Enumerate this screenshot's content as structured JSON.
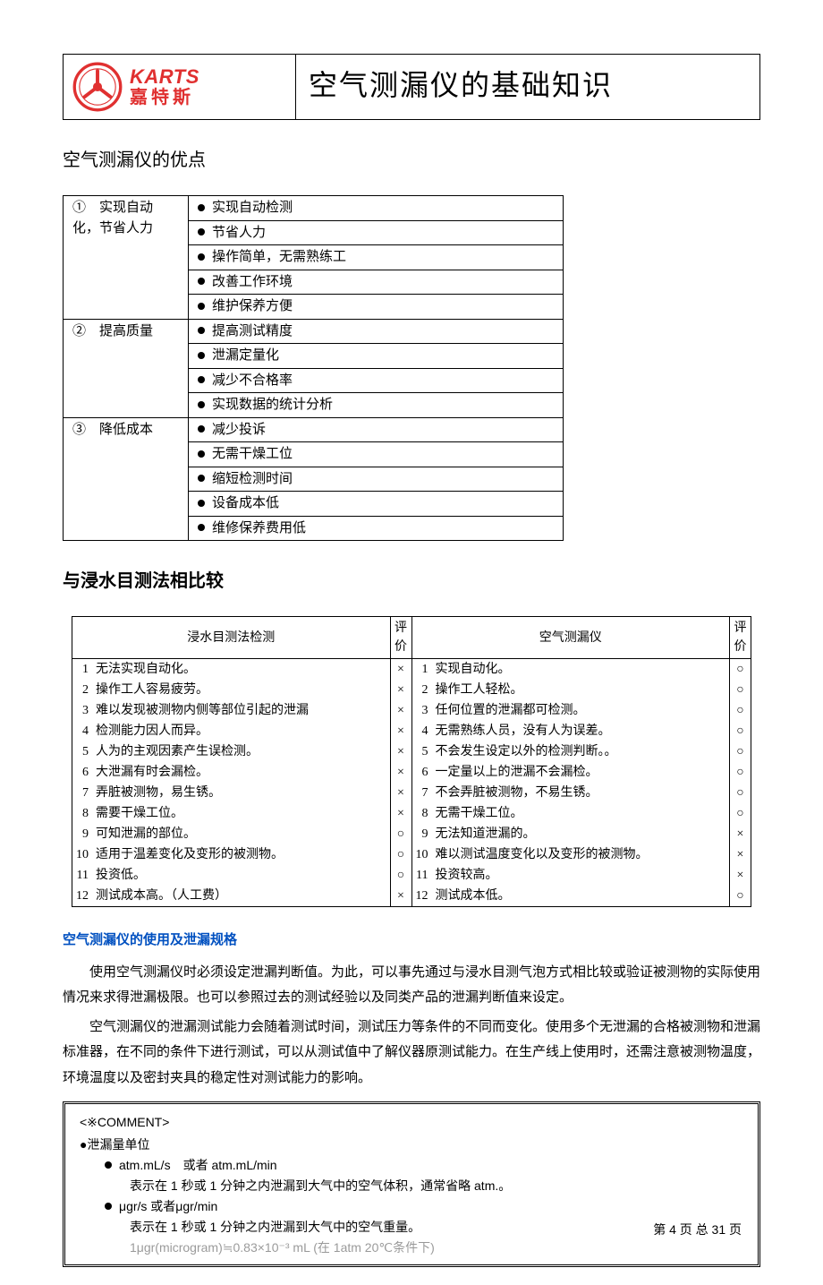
{
  "header": {
    "logo_en": "KARTS",
    "logo_cn": "嘉特斯",
    "doc_title": "空气测漏仪的基础知识"
  },
  "section1": {
    "title": "空气测漏仪的优点",
    "groups": [
      {
        "label": "①　实现自动化，节省人力",
        "items": [
          "实现自动检测",
          "节省人力",
          "操作简单，无需熟练工",
          "改善工作环境",
          "维护保养方便"
        ]
      },
      {
        "label": "②　提高质量",
        "items": [
          "提高测试精度",
          "泄漏定量化",
          "减少不合格率",
          "实现数据的统计分析"
        ]
      },
      {
        "label": "③　降低成本",
        "items": [
          "减少投诉",
          "无需干燥工位",
          "缩短检测时间",
          "设备成本低",
          "维修保养费用低"
        ]
      }
    ]
  },
  "section2": {
    "title": "与浸水目测法相比较",
    "head_left": "浸水目测法检测",
    "head_right": "空气测漏仪",
    "head_eval": "评价",
    "rows": [
      {
        "n": "1",
        "l": "无法实现自动化。",
        "le": "×",
        "r": "实现自动化。",
        "re": "○"
      },
      {
        "n": "2",
        "l": "操作工人容易疲劳。",
        "le": "×",
        "r": "操作工人轻松。",
        "re": "○"
      },
      {
        "n": "3",
        "l": "难以发现被测物内侧等部位引起的泄漏",
        "le": "×",
        "r": "任何位置的泄漏都可检测。",
        "re": "○"
      },
      {
        "n": "4",
        "l": "检测能力因人而异。",
        "le": "×",
        "r": "无需熟练人员，没有人为误差。",
        "re": "○"
      },
      {
        "n": "5",
        "l": "人为的主观因素产生误检测。",
        "le": "×",
        "r": "不会发生设定以外的检测判断。。",
        "re": "○"
      },
      {
        "n": "6",
        "l": "大泄漏有时会漏检。",
        "le": "×",
        "r": "一定量以上的泄漏不会漏检。",
        "re": "○"
      },
      {
        "n": "7",
        "l": "弄脏被测物，易生锈。",
        "le": "×",
        "r": "不会弄脏被测物，不易生锈。",
        "re": "○"
      },
      {
        "n": "8",
        "l": "需要干燥工位。",
        "le": "×",
        "r": "无需干燥工位。",
        "re": "○"
      },
      {
        "n": "9",
        "l": "可知泄漏的部位。",
        "le": "○",
        "r": "无法知道泄漏的。",
        "re": "×"
      },
      {
        "n": "10",
        "l": "适用于温差变化及变形的被测物。",
        "le": "○",
        "r": "难以测试温度变化以及变形的被测物。",
        "re": "×"
      },
      {
        "n": "11",
        "l": "投资低。",
        "le": "○",
        "r": "投资较高。",
        "re": "×"
      },
      {
        "n": "12",
        "l": "测试成本高。（人工费）",
        "le": "×",
        "r": "测试成本低。",
        "re": "○"
      }
    ]
  },
  "section3": {
    "title": "空气测漏仪的使用及泄漏规格",
    "p1": "使用空气测漏仪时必须设定泄漏判断值。为此，可以事先通过与浸水目测气泡方式相比较或验证被测物的实际使用情况来求得泄漏极限。也可以参照过去的测试经验以及同类产品的泄漏判断值来设定。",
    "p2": "空气测漏仪的泄漏测试能力会随着测试时间，测试压力等条件的不同而变化。使用多个无泄漏的合格被测物和泄漏标准器，在不同的条件下进行测试，可以从测试值中了解仪器原测试能力。在生产线上使用时，还需注意被测物温度，环境温度以及密封夹具的稳定性对测试能力的影响。"
  },
  "comment": {
    "head": "<※COMMENT>",
    "b0": "●泄漏量单位",
    "u1": "atm.mL/s　或者 atm.mL/min",
    "u1d": "表示在 1 秒或 1 分钟之内泄漏到大气中的空气体积，通常省略 atm.。",
    "u2": "μgr/s 或者μgr/min",
    "u2d": "表示在 1 秒或 1 分钟之内泄漏到大气中的空气重量。",
    "u3": "1μgr(microgram)≒0.83×10⁻³ mL (在 1atm 20℃条件下)"
  },
  "footer": {
    "page": "第 4 页 总 31 页"
  },
  "colors": {
    "brand_red": "#e03030",
    "link_blue": "#0050c0",
    "text": "#000000",
    "bg": "#ffffff"
  }
}
